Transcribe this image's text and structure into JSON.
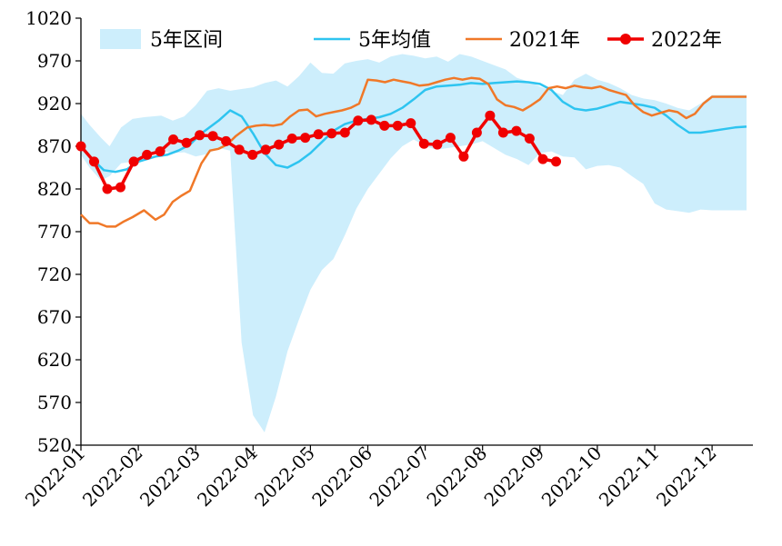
{
  "chart_data": {
    "type": "line",
    "title": "",
    "xlabel": "",
    "ylabel": "",
    "ylim": [
      520,
      1020
    ],
    "yticks": [
      520,
      570,
      620,
      670,
      720,
      770,
      820,
      870,
      920,
      970,
      1020
    ],
    "xlim": [
      0,
      11.6
    ],
    "xticks": [
      {
        "label": "2022-01",
        "x": 0
      },
      {
        "label": "2022-02",
        "x": 1
      },
      {
        "label": "2022-03",
        "x": 2
      },
      {
        "label": "2022-04",
        "x": 3
      },
      {
        "label": "2022-05",
        "x": 4
      },
      {
        "label": "2022-06",
        "x": 5
      },
      {
        "label": "2022-07",
        "x": 6
      },
      {
        "label": "2022-08",
        "x": 7
      },
      {
        "label": "2022-09",
        "x": 8
      },
      {
        "label": "2022-10",
        "x": 9
      },
      {
        "label": "2022-11",
        "x": 10
      },
      {
        "label": "2022-12",
        "x": 11
      }
    ],
    "legend": {
      "position": "top",
      "items": [
        {
          "key": "band",
          "label": "5年区间"
        },
        {
          "key": "avg",
          "label": "5年均值"
        },
        {
          "key": "y2021",
          "label": "2021年"
        },
        {
          "key": "y2022",
          "label": "2022年"
        }
      ]
    },
    "colors": {
      "band": "#cdeefc",
      "avg": "#2ec4f0",
      "y2021": "#f07828",
      "y2022": "#f00000"
    },
    "band": {
      "x": [
        0,
        0.15,
        0.35,
        0.5,
        0.7,
        0.9,
        1.1,
        1.4,
        1.6,
        1.8,
        2.0,
        2.2,
        2.4,
        2.6,
        2.8,
        3.0,
        3.2,
        3.4,
        3.6,
        3.8,
        4.0,
        4.2,
        4.4,
        4.6,
        4.8,
        5.0,
        5.2,
        5.4,
        5.6,
        5.8,
        6.0,
        6.2,
        6.4,
        6.6,
        6.8,
        7.0,
        7.2,
        7.4,
        7.6,
        7.8,
        8.0,
        8.2,
        8.4,
        8.6,
        8.8,
        9.0,
        9.2,
        9.4,
        9.6,
        9.8,
        10.0,
        10.2,
        10.4,
        10.6,
        10.8,
        11.0,
        11.2,
        11.4,
        11.6
      ],
      "high": [
        908,
        895,
        880,
        870,
        892,
        902,
        904,
        906,
        900,
        905,
        918,
        935,
        938,
        935,
        937,
        939,
        944,
        947,
        940,
        952,
        968,
        956,
        955,
        967,
        970,
        972,
        968,
        975,
        978,
        976,
        973,
        975,
        969,
        978,
        975,
        970,
        965,
        960,
        950,
        946,
        940,
        935,
        930,
        948,
        955,
        948,
        944,
        938,
        930,
        926,
        924,
        920,
        915,
        912,
        920,
        930,
        930,
        930,
        930
      ],
      "low": [
        860,
        845,
        830,
        835,
        850,
        852,
        860,
        865,
        862,
        863,
        858,
        861,
        868,
        865,
        640,
        555,
        535,
        577,
        630,
        667,
        702,
        725,
        738,
        766,
        797,
        820,
        838,
        856,
        870,
        878,
        870,
        866,
        868,
        870,
        872,
        876,
        868,
        860,
        855,
        848,
        862,
        864,
        858,
        857,
        843,
        847,
        848,
        845,
        835,
        826,
        803,
        796,
        794,
        792,
        796,
        795,
        795,
        795,
        795
      ]
    },
    "series": [
      {
        "key": "avg",
        "name": "5年均值",
        "x": [
          0,
          0.2,
          0.4,
          0.6,
          0.8,
          1.0,
          1.3,
          1.5,
          1.7,
          1.9,
          2.1,
          2.4,
          2.6,
          2.8,
          3.0,
          3.2,
          3.4,
          3.6,
          3.8,
          4.0,
          4.2,
          4.4,
          4.6,
          4.8,
          5.0,
          5.2,
          5.4,
          5.6,
          5.8,
          6.0,
          6.2,
          6.4,
          6.6,
          6.8,
          7.0,
          7.2,
          7.4,
          7.6,
          7.8,
          8.0,
          8.2,
          8.4,
          8.6,
          8.8,
          9.0,
          9.2,
          9.4,
          9.6,
          9.8,
          10.0,
          10.2,
          10.4,
          10.6,
          10.8,
          11.0,
          11.2,
          11.4,
          11.6
        ],
        "values": [
          870,
          855,
          842,
          840,
          843,
          852,
          858,
          860,
          865,
          872,
          885,
          900,
          912,
          905,
          885,
          862,
          848,
          845,
          852,
          862,
          875,
          888,
          896,
          900,
          902,
          904,
          908,
          915,
          925,
          936,
          940,
          941,
          942,
          944,
          943,
          944,
          945,
          946,
          945,
          943,
          936,
          922,
          914,
          912,
          914,
          918,
          922,
          920,
          918,
          915,
          906,
          895,
          886,
          886,
          888,
          890,
          892,
          893
        ]
      },
      {
        "key": "y2021",
        "name": "2021年",
        "x": [
          0,
          0.15,
          0.3,
          0.45,
          0.6,
          0.75,
          0.9,
          1.1,
          1.3,
          1.45,
          1.6,
          1.75,
          1.9,
          2.1,
          2.25,
          2.4,
          2.55,
          2.7,
          2.9,
          3.05,
          3.2,
          3.35,
          3.5,
          3.65,
          3.8,
          3.95,
          4.1,
          4.25,
          4.4,
          4.55,
          4.7,
          4.85,
          5.0,
          5.15,
          5.3,
          5.45,
          5.6,
          5.75,
          5.9,
          6.05,
          6.2,
          6.35,
          6.5,
          6.65,
          6.8,
          6.95,
          7.1,
          7.25,
          7.4,
          7.55,
          7.7,
          7.85,
          8.0,
          8.15,
          8.3,
          8.45,
          8.6,
          8.75,
          8.9,
          9.05,
          9.2,
          9.35,
          9.5,
          9.65,
          9.8,
          9.95,
          10.1,
          10.25,
          10.4,
          10.55,
          10.7,
          10.85,
          11.0,
          11.15,
          11.3,
          11.45,
          11.6
        ],
        "values": [
          790,
          780,
          780,
          776,
          776,
          782,
          787,
          795,
          784,
          790,
          805,
          812,
          818,
          850,
          865,
          867,
          872,
          882,
          892,
          894,
          895,
          894,
          896,
          905,
          912,
          913,
          905,
          908,
          910,
          912,
          915,
          920,
          948,
          947,
          945,
          948,
          946,
          944,
          941,
          942,
          945,
          948,
          950,
          948,
          950,
          949,
          943,
          925,
          918,
          916,
          912,
          918,
          925,
          938,
          940,
          938,
          941,
          939,
          938,
          940,
          936,
          933,
          930,
          918,
          910,
          906,
          909,
          912,
          910,
          903,
          908,
          920,
          928,
          928,
          928,
          928,
          928
        ]
      },
      {
        "key": "y2022",
        "name": "2022年",
        "markers": true,
        "x": [
          0,
          0.23,
          0.46,
          0.69,
          0.92,
          1.15,
          1.38,
          1.61,
          1.84,
          2.07,
          2.3,
          2.53,
          2.76,
          2.99,
          3.22,
          3.45,
          3.68,
          3.91,
          4.14,
          4.37,
          4.6,
          4.83,
          5.06,
          5.29,
          5.52,
          5.75,
          5.98,
          6.21,
          6.44,
          6.67,
          6.9,
          7.13,
          7.36,
          7.59,
          7.82,
          8.05,
          8.28
        ],
        "values": [
          870,
          852,
          820,
          822,
          852,
          860,
          864,
          878,
          874,
          883,
          882,
          876,
          866,
          860,
          866,
          872,
          879,
          880,
          884,
          885,
          886,
          900,
          901,
          894,
          894,
          897,
          873,
          872,
          880,
          858,
          886,
          906,
          886,
          888,
          879,
          855,
          852
        ]
      }
    ]
  }
}
